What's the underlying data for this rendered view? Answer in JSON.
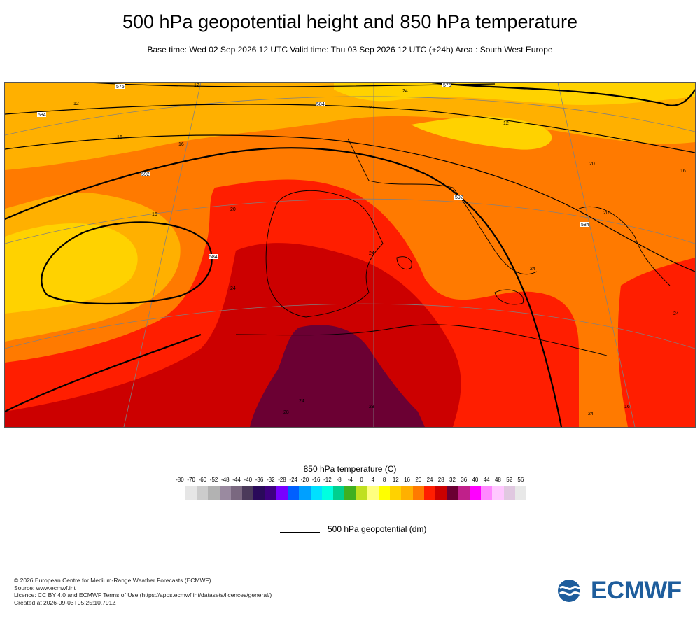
{
  "title": "500 hPa geopotential height and 850 hPa temperature",
  "subtitle": "Base time: Wed 02 Sep 2026 12 UTC Valid time: Thu 03 Sep 2026 12 UTC (+24h) Area : South West Europe",
  "map": {
    "geopotential_labels": [
      "576",
      "584",
      "584",
      "592",
      "592",
      "584",
      "576",
      "584"
    ],
    "temperature_labels": [
      "12",
      "16",
      "16",
      "16",
      "12",
      "20",
      "24",
      "24",
      "24",
      "28",
      "28",
      "20",
      "20",
      "24",
      "24",
      "24",
      "16",
      "20",
      "24",
      "12",
      "16"
    ],
    "fill_colors": {
      "t12": "#ffd200",
      "t16": "#ffb000",
      "t20": "#ff7a00",
      "t24": "#ff1e00",
      "t28": "#cc0000",
      "t32": "#6b0033",
      "sea_line": "#000000",
      "graticule": "#808080"
    }
  },
  "legend": {
    "title": "850 hPa temperature (C)",
    "ticks": [
      "-80",
      "-70",
      "-60",
      "-52",
      "-48",
      "-44",
      "-40",
      "-36",
      "-32",
      "-28",
      "-24",
      "-20",
      "-16",
      "-12",
      "-8",
      "-4",
      "0",
      "4",
      "8",
      "12",
      "16",
      "20",
      "24",
      "28",
      "32",
      "36",
      "40",
      "44",
      "48",
      "52",
      "56"
    ],
    "colors": [
      "#e6e6e6",
      "#cccccc",
      "#b2b2b2",
      "#9a8aa0",
      "#7a6880",
      "#4b3a5a",
      "#2a0a5a",
      "#3e0080",
      "#7800ff",
      "#0060ff",
      "#00a0ff",
      "#00e0ff",
      "#00ffe0",
      "#00d090",
      "#40b020",
      "#c0e020",
      "#ffff80",
      "#ffff00",
      "#ffd200",
      "#ffb000",
      "#ff7a00",
      "#ff1e00",
      "#cc0000",
      "#6b0033",
      "#c0208a",
      "#ff00ff",
      "#ff88ff",
      "#ffc8ff",
      "#e0c8e0",
      "#e8e8e8"
    ]
  },
  "geopotential_legend": {
    "label": "500 hPa geopotential (dm)"
  },
  "credits": {
    "copyright": "© 2026 European Centre for Medium-Range Weather Forecasts (ECMWF)",
    "source": "Source: www.ecmwf.int",
    "licence": "Licence: CC BY 4.0 and ECMWF Terms of Use (https://apps.ecmwf.int/datasets/licences/general/)",
    "created": "Created at 2026-09-03T05:25:10.791Z"
  },
  "logo": {
    "text": "ECMWF",
    "color": "#1e5d9c"
  }
}
